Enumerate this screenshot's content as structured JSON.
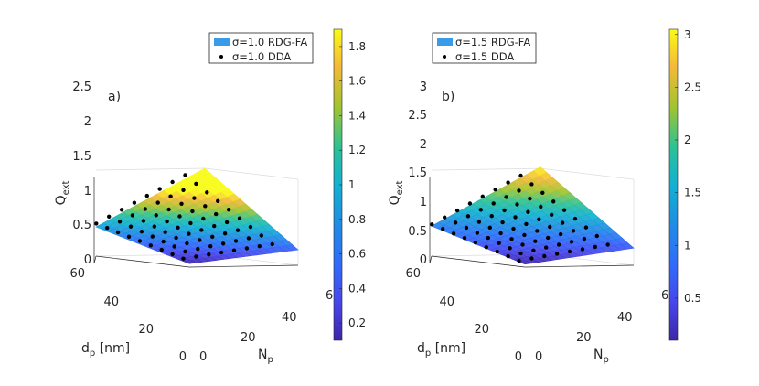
{
  "chart_data": [
    {
      "type": "surface3d",
      "panel_label": "a)",
      "sigma": 1.0,
      "xlabel": "N",
      "xlabel_sub": "p",
      "ylabel": "d",
      "ylabel_sub": "p",
      "ylabel_unit": " [nm]",
      "zlabel": "Q",
      "zlabel_sub": "ext",
      "x_ticks": [
        "0",
        "20",
        "40",
        "6"
      ],
      "y_ticks": [
        "0",
        "20",
        "40",
        "60"
      ],
      "z_ticks": [
        "0",
        "0.5",
        "1",
        "1.5",
        "2",
        "2.5"
      ],
      "colorbar_ticks": [
        "0.2",
        "0.4",
        "0.6",
        "0.8",
        "1",
        "1.2",
        "1.4",
        "1.6",
        "1.8"
      ],
      "colorbar_range": [
        0.1,
        1.9
      ],
      "zlim": [
        0,
        2.5
      ],
      "legend": [
        {
          "label": "σ=1.0 RDG-FA",
          "marker": "patch",
          "color": "#3b9be6"
        },
        {
          "label": "σ=1.0 DDA",
          "marker": "dot",
          "color": "#000000"
        }
      ],
      "surface_corners": {
        "Np_min_dp_min": 0.1,
        "Np_max_dp_min": 0.45,
        "Np_min_dp_max": 0.85,
        "Np_max_dp_max": 2.5
      },
      "dda_grid": {
        "Np": [
          1,
          8,
          15,
          22,
          29,
          36,
          43,
          50
        ],
        "dp": [
          5,
          12,
          19,
          26,
          33,
          40,
          47,
          54,
          61
        ]
      },
      "dda_offset": 0.0
    },
    {
      "type": "surface3d",
      "panel_label": "b)",
      "sigma": 1.5,
      "xlabel": "N",
      "xlabel_sub": "p",
      "ylabel": "d",
      "ylabel_sub": "p",
      "ylabel_unit": " [nm]",
      "zlabel": "Q",
      "zlabel_sub": "ext",
      "x_ticks": [
        "0",
        "20",
        "40",
        "6"
      ],
      "y_ticks": [
        "0",
        "20",
        "40",
        "60"
      ],
      "z_ticks": [
        "0",
        "0.5",
        "1",
        "1.5",
        "2",
        "2.5",
        "3"
      ],
      "colorbar_ticks": [
        "0.5",
        "1",
        "1.5",
        "2",
        "2.5",
        "3"
      ],
      "colorbar_range": [
        0.1,
        3.05
      ],
      "zlim": [
        0,
        3
      ],
      "legend": [
        {
          "label": "σ=1.5 RDG-FA",
          "marker": "patch",
          "color": "#3b9be6"
        },
        {
          "label": "σ=1.5 DDA",
          "marker": "dot",
          "color": "#000000"
        }
      ],
      "surface_corners": {
        "Np_min_dp_min": 0.1,
        "Np_max_dp_min": 0.6,
        "Np_min_dp_max": 1.05,
        "Np_max_dp_max": 3.05
      },
      "dda_grid": {
        "Np": [
          1,
          8,
          15,
          22,
          29,
          36,
          43,
          50
        ],
        "dp": [
          5,
          12,
          19,
          26,
          33,
          40,
          47,
          54,
          61
        ]
      },
      "dda_offset": -0.05
    }
  ]
}
